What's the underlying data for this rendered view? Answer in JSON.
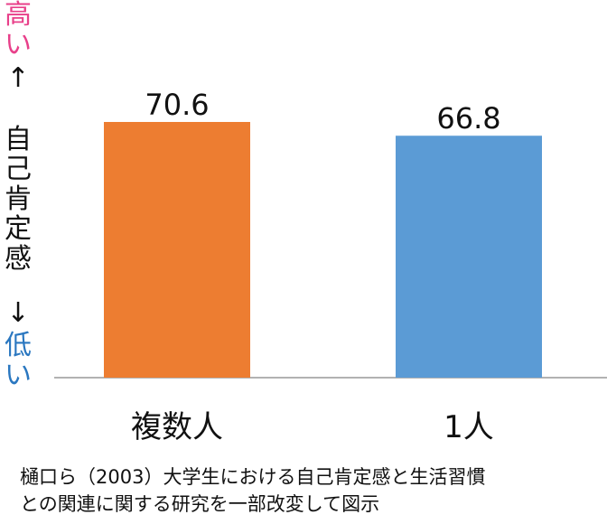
{
  "y_axis": {
    "high_label": "高い",
    "up_arrow": "↑",
    "title": "自己肯定感",
    "down_arrow": "↓",
    "low_label": "低い",
    "high_color": "#e8408a",
    "low_color": "#2a77c0"
  },
  "chart_data": {
    "type": "bar",
    "categories": [
      "複数人",
      "1人"
    ],
    "values": [
      70.6,
      66.8
    ],
    "data_labels": [
      "70.6",
      "66.8"
    ],
    "colors": [
      "#ed7d31",
      "#5b9bd5"
    ],
    "title": "",
    "xlabel": "",
    "ylabel": "自己肯定感",
    "ylim": [
      0,
      100
    ],
    "grid": false
  },
  "source": {
    "line1": "樋口ら（2003）大学生における自己肯定感と生活習慣",
    "line2": "との関連に関する研究を一部改変して図示"
  }
}
